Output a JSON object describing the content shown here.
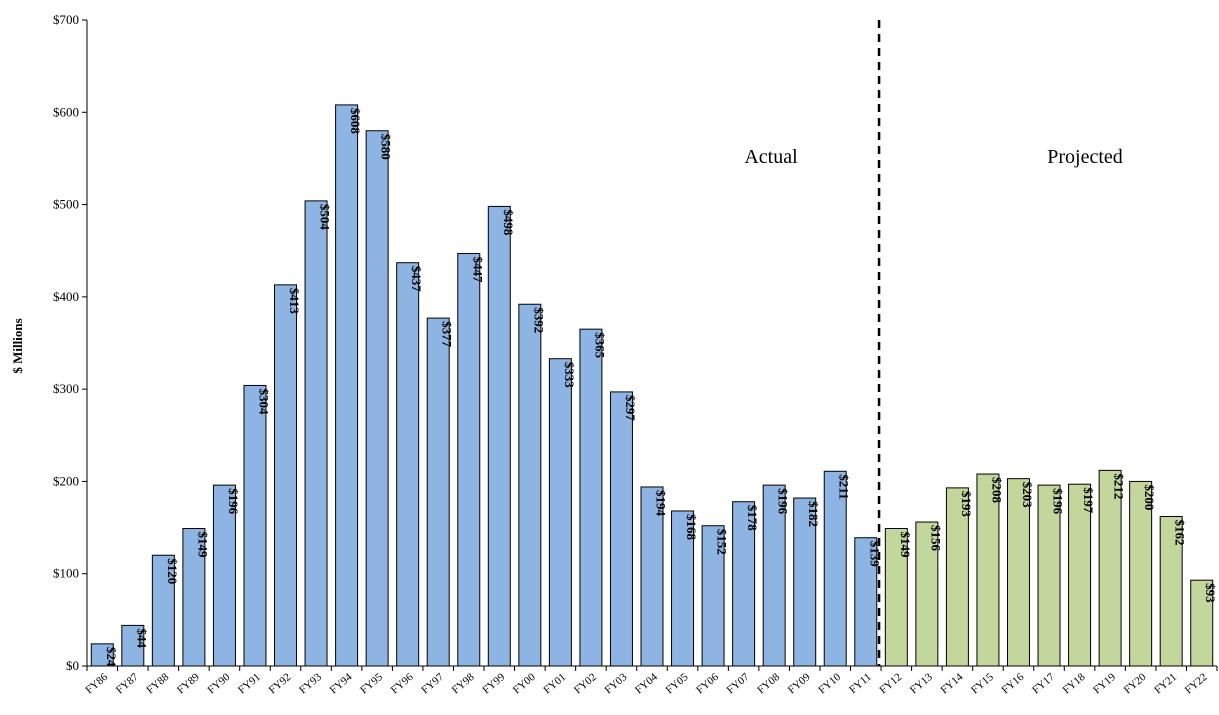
{
  "chart_data": {
    "type": "bar",
    "title": "",
    "xlabel": "",
    "ylabel": "$ Millions",
    "ylim": [
      0,
      700
    ],
    "yticks": [
      0,
      100,
      200,
      300,
      400,
      500,
      600,
      700
    ],
    "ytick_labels": [
      "$0",
      "$100",
      "$200",
      "$300",
      "$400",
      "$500",
      "$600",
      "$700"
    ],
    "categories": [
      "FY86",
      "FY87",
      "FY88",
      "FY89",
      "FY90",
      "FY91",
      "FY92",
      "FY93",
      "FY94",
      "FY95",
      "FY96",
      "FY97",
      "FY98",
      "FY99",
      "FY00",
      "FY01",
      "FY02",
      "FY03",
      "FY04",
      "FY05",
      "FY06",
      "FY07",
      "FY08",
      "FY09",
      "FY10",
      "FY11",
      "FY12",
      "FY13",
      "FY14",
      "FY15",
      "FY16",
      "FY17",
      "FY18",
      "FY19",
      "FY20",
      "FY21",
      "FY22"
    ],
    "values": [
      24,
      44,
      120,
      149,
      196,
      304,
      413,
      504,
      608,
      580,
      437,
      377,
      447,
      498,
      392,
      333,
      365,
      297,
      194,
      168,
      152,
      178,
      196,
      182,
      211,
      139,
      149,
      156,
      193,
      208,
      203,
      196,
      197,
      212,
      200,
      162,
      93
    ],
    "data_labels": [
      "$24",
      "$44",
      "$120",
      "$149",
      "$196",
      "$304",
      "$413",
      "$504",
      "$608",
      "$580",
      "$437",
      "$377",
      "$447",
      "$498",
      "$392",
      "$333",
      "$365",
      "$297",
      "$194",
      "$168",
      "$152",
      "$178",
      "$196",
      "$182",
      "$211",
      "$139",
      "$149",
      "$156",
      "$193",
      "$208",
      "$203",
      "$196",
      "$197",
      "$212",
      "$200",
      "$162",
      "$93"
    ],
    "split_after_index": 25,
    "series_segments": [
      {
        "label": "Actual",
        "from_index": 0,
        "to_index": 25,
        "color": "#8eb4e3"
      },
      {
        "label": "Projected",
        "from_index": 26,
        "to_index": 36,
        "color": "#c3d69b"
      }
    ],
    "grid": false,
    "legend": "none"
  }
}
